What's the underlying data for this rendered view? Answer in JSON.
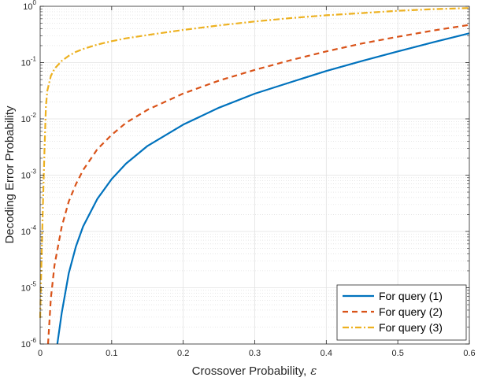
{
  "chart_data": {
    "type": "line",
    "title": "",
    "xlabel": "Crossover Probability,",
    "xlabel_symbol": "ε",
    "ylabel": "Decoding Error Probability",
    "xlim": [
      0,
      0.6
    ],
    "ylim": [
      1e-06,
      1
    ],
    "yscale": "log",
    "grid": true,
    "minor_grid": true,
    "legend_position": "bottom-right",
    "x_ticks": [
      "0",
      "0.1",
      "0.2",
      "0.3",
      "0.4",
      "0.5",
      "0.6"
    ],
    "y_ticks": [
      {
        "base": "10",
        "exp": "-6"
      },
      {
        "base": "10",
        "exp": "-5"
      },
      {
        "base": "10",
        "exp": "-4"
      },
      {
        "base": "10",
        "exp": "-3"
      },
      {
        "base": "10",
        "exp": "-2"
      },
      {
        "base": "10",
        "exp": "-1"
      },
      {
        "base": "10",
        "exp": "0"
      }
    ],
    "series": [
      {
        "name": "For query (1)",
        "color": "#0072BD",
        "style": "solid",
        "x": [
          0.024,
          0.03,
          0.04,
          0.05,
          0.06,
          0.08,
          0.1,
          0.12,
          0.15,
          0.2,
          0.25,
          0.3,
          0.35,
          0.4,
          0.45,
          0.5,
          0.55,
          0.6
        ],
        "y": [
          1e-06,
          3.5e-06,
          1.8e-05,
          5.4e-05,
          0.000122,
          0.00038,
          0.00085,
          0.0016,
          0.0033,
          0.0079,
          0.0158,
          0.028,
          0.0447,
          0.0708,
          0.107,
          0.158,
          0.23,
          0.331
        ]
      },
      {
        "name": "For query (2)",
        "color": "#D95319",
        "style": "dashed",
        "x": [
          0.011,
          0.015,
          0.02,
          0.03,
          0.04,
          0.05,
          0.06,
          0.08,
          0.1,
          0.12,
          0.15,
          0.2,
          0.25,
          0.3,
          0.35,
          0.4,
          0.45,
          0.5,
          0.55,
          0.6
        ],
        "y": [
          1e-06,
          6.5e-06,
          2.5e-05,
          0.00012,
          0.00034,
          0.00069,
          0.00123,
          0.0029,
          0.0052,
          0.0085,
          0.0145,
          0.0282,
          0.0479,
          0.0741,
          0.11,
          0.158,
          0.219,
          0.288,
          0.372,
          0.468
        ]
      },
      {
        "name": "For query (3)",
        "color": "#EDB120",
        "style": "dashdot",
        "x": [
          0.0,
          0.002,
          0.004,
          0.006,
          0.008,
          0.01,
          0.015,
          0.02,
          0.03,
          0.04,
          0.05,
          0.06,
          0.08,
          0.1,
          0.12,
          0.15,
          0.2,
          0.25,
          0.3,
          0.35,
          0.4,
          0.45,
          0.5,
          0.55,
          0.6
        ],
        "y": [
          2.9e-06,
          3.5e-05,
          0.00033,
          0.0028,
          0.0168,
          0.0316,
          0.058,
          0.0776,
          0.107,
          0.132,
          0.155,
          0.174,
          0.209,
          0.24,
          0.27,
          0.309,
          0.38,
          0.457,
          0.537,
          0.617,
          0.692,
          0.759,
          0.832,
          0.89,
          0.933
        ]
      }
    ]
  }
}
